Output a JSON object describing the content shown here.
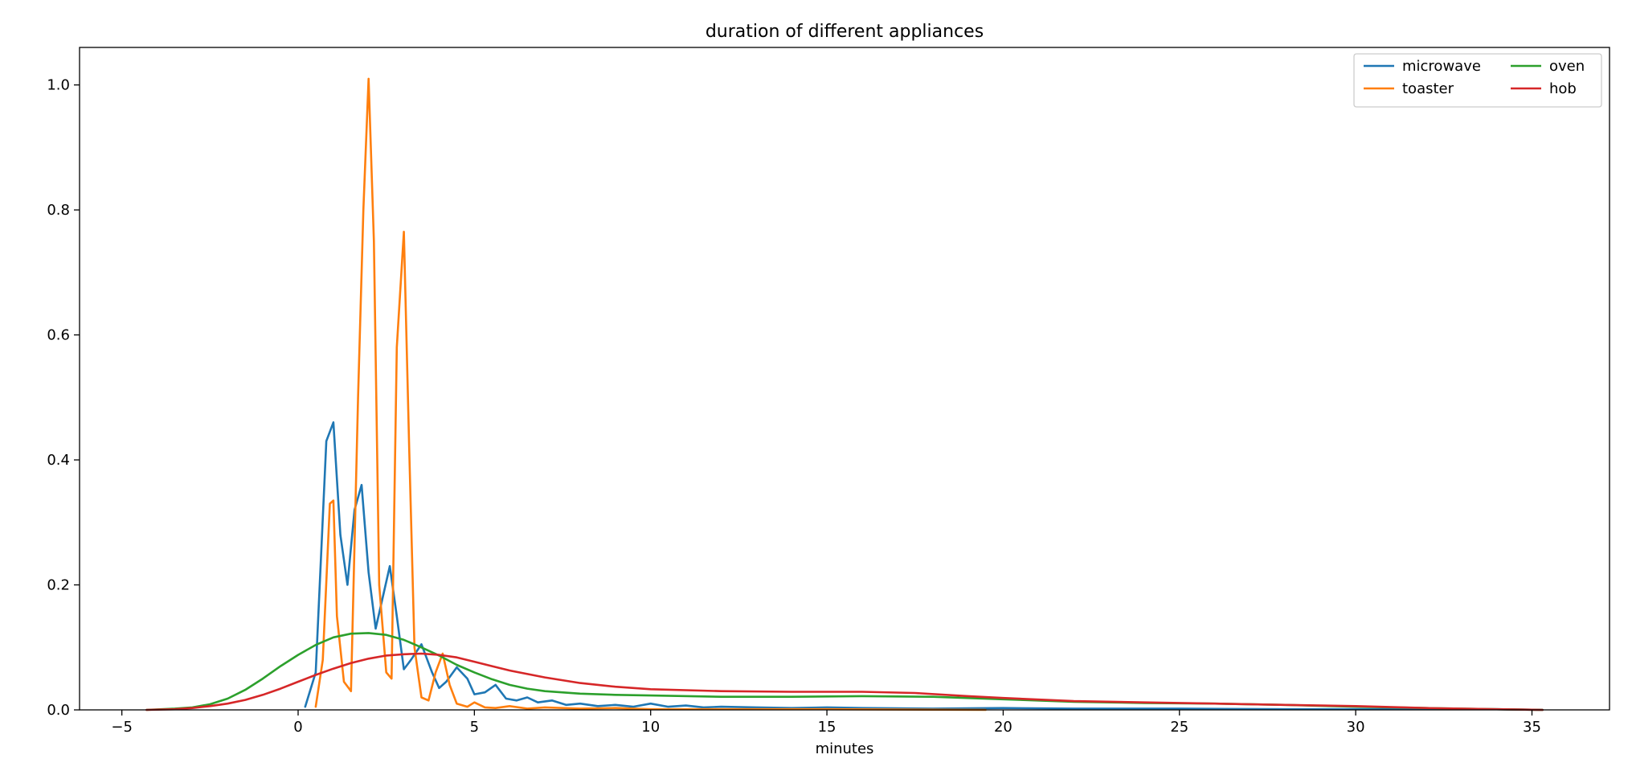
{
  "chart_data": {
    "type": "line",
    "title": "duration of different appliances",
    "xlabel": "minutes",
    "ylabel": "",
    "xlim": [
      -6.2,
      37.2
    ],
    "ylim": [
      0,
      1.06
    ],
    "xticks": [
      -5,
      0,
      5,
      10,
      15,
      20,
      25,
      30,
      35
    ],
    "yticks": [
      0.0,
      0.2,
      0.4,
      0.6,
      0.8,
      1.0
    ],
    "xtick_labels": [
      "−5",
      "0",
      "5",
      "10",
      "15",
      "20",
      "25",
      "30",
      "35"
    ],
    "ytick_labels": [
      "0.0",
      "0.2",
      "0.4",
      "0.6",
      "0.8",
      "1.0"
    ],
    "grid": false,
    "legend": {
      "placement": "top-right",
      "columns": 2
    },
    "series": [
      {
        "name": "microwave",
        "color": "#1f77b4",
        "x": [
          0.2,
          0.5,
          0.8,
          1.0,
          1.2,
          1.4,
          1.6,
          1.8,
          2.0,
          2.2,
          2.4,
          2.6,
          2.8,
          3.0,
          3.2,
          3.5,
          3.8,
          4.0,
          4.2,
          4.5,
          4.8,
          5.0,
          5.3,
          5.6,
          5.9,
          6.2,
          6.5,
          6.8,
          7.2,
          7.6,
          8.0,
          8.5,
          9.0,
          9.5,
          10.0,
          10.5,
          11.0,
          11.5,
          12.0,
          13.0,
          14.0,
          15.0,
          16.0,
          18.0,
          20.0,
          22.0,
          25.0,
          28.0,
          31.0,
          34.0,
          35.3
        ],
        "y": [
          0.005,
          0.06,
          0.43,
          0.46,
          0.28,
          0.2,
          0.32,
          0.36,
          0.22,
          0.13,
          0.18,
          0.23,
          0.15,
          0.065,
          0.08,
          0.105,
          0.06,
          0.035,
          0.045,
          0.068,
          0.05,
          0.025,
          0.028,
          0.04,
          0.018,
          0.015,
          0.02,
          0.012,
          0.015,
          0.008,
          0.01,
          0.006,
          0.008,
          0.005,
          0.01,
          0.005,
          0.007,
          0.004,
          0.005,
          0.004,
          0.003,
          0.004,
          0.003,
          0.002,
          0.003,
          0.002,
          0.002,
          0.001,
          0.001,
          0.001,
          0.0
        ]
      },
      {
        "name": "toaster",
        "color": "#ff7f0e",
        "x": [
          0.5,
          0.7,
          0.9,
          1.0,
          1.1,
          1.3,
          1.5,
          1.7,
          1.85,
          2.0,
          2.15,
          2.3,
          2.5,
          2.65,
          2.8,
          3.0,
          3.15,
          3.3,
          3.5,
          3.7,
          3.9,
          4.1,
          4.3,
          4.5,
          4.8,
          5.0,
          5.3,
          5.6,
          6.0,
          6.5,
          7.0,
          8.0,
          9.0,
          10.0,
          12.0,
          15.0,
          19.5
        ],
        "y": [
          0.005,
          0.08,
          0.33,
          0.335,
          0.15,
          0.045,
          0.03,
          0.5,
          0.8,
          1.01,
          0.75,
          0.2,
          0.06,
          0.05,
          0.58,
          0.765,
          0.42,
          0.1,
          0.02,
          0.015,
          0.06,
          0.09,
          0.04,
          0.01,
          0.005,
          0.012,
          0.004,
          0.003,
          0.006,
          0.002,
          0.004,
          0.002,
          0.003,
          0.001,
          0.001,
          0.001,
          0.0
        ]
      },
      {
        "name": "oven",
        "color": "#2ca02c",
        "x": [
          -4.3,
          -3.5,
          -3.0,
          -2.5,
          -2.0,
          -1.5,
          -1.0,
          -0.5,
          0.0,
          0.5,
          1.0,
          1.5,
          2.0,
          2.5,
          3.0,
          3.5,
          4.0,
          4.5,
          5.0,
          5.5,
          6.0,
          6.5,
          7.0,
          8.0,
          9.0,
          10.0,
          12.0,
          14.0,
          16.0,
          18.0,
          20.0,
          22.0,
          24.0,
          26.0,
          28.0,
          30.0,
          32.0,
          34.0,
          35.3
        ],
        "y": [
          0.0,
          0.002,
          0.004,
          0.009,
          0.018,
          0.032,
          0.05,
          0.07,
          0.088,
          0.104,
          0.116,
          0.122,
          0.123,
          0.12,
          0.112,
          0.1,
          0.087,
          0.072,
          0.06,
          0.049,
          0.04,
          0.034,
          0.03,
          0.026,
          0.024,
          0.023,
          0.021,
          0.021,
          0.022,
          0.021,
          0.017,
          0.013,
          0.011,
          0.01,
          0.008,
          0.005,
          0.003,
          0.001,
          0.0
        ]
      },
      {
        "name": "hob",
        "color": "#d62728",
        "x": [
          -4.3,
          -3.5,
          -3.0,
          -2.5,
          -2.0,
          -1.5,
          -1.0,
          -0.5,
          0.0,
          0.5,
          1.0,
          1.5,
          2.0,
          2.5,
          3.0,
          3.5,
          4.0,
          4.5,
          5.0,
          5.5,
          6.0,
          7.0,
          8.0,
          9.0,
          10.0,
          12.0,
          14.0,
          16.0,
          17.5,
          19.0,
          20.0,
          22.0,
          24.0,
          26.0,
          28.0,
          30.0,
          32.0,
          34.0,
          35.3
        ],
        "y": [
          0.0,
          0.001,
          0.003,
          0.006,
          0.01,
          0.016,
          0.024,
          0.034,
          0.045,
          0.056,
          0.066,
          0.075,
          0.082,
          0.087,
          0.089,
          0.09,
          0.088,
          0.084,
          0.077,
          0.07,
          0.063,
          0.052,
          0.043,
          0.037,
          0.033,
          0.03,
          0.029,
          0.029,
          0.027,
          0.022,
          0.019,
          0.014,
          0.012,
          0.01,
          0.008,
          0.006,
          0.003,
          0.001,
          0.0
        ]
      }
    ]
  }
}
